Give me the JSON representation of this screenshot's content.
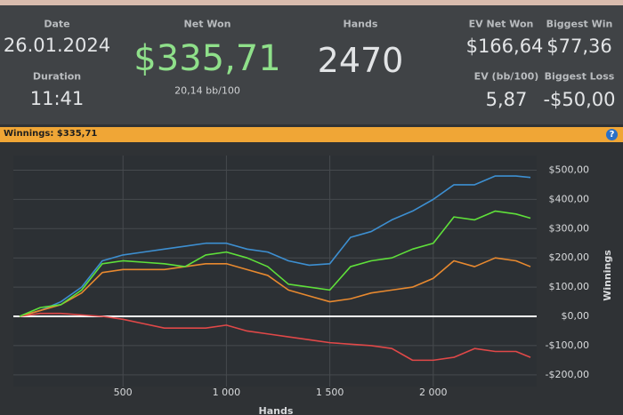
{
  "header": {
    "date": {
      "label": "Date",
      "value": "26.01.2024"
    },
    "duration": {
      "label": "Duration",
      "value": "11:41"
    },
    "net_won": {
      "label": "Net Won",
      "value": "$335,71",
      "sub": "20,14 bb/100"
    },
    "hands": {
      "label": "Hands",
      "value": "2470"
    },
    "ev_net_won": {
      "label": "EV Net Won",
      "value": "$166,64"
    },
    "ev_bb100": {
      "label": "EV (bb/100)",
      "value": "5,87"
    },
    "biggest_win": {
      "label": "Biggest Win",
      "value": "$77,36"
    },
    "biggest_loss": {
      "label": "Biggest Loss",
      "value": "-$50,00"
    }
  },
  "banner": {
    "title": "Winnings: $335,71",
    "help": "?"
  },
  "chart_data": {
    "type": "line",
    "x_label": "Hands",
    "y_label": "Winnings",
    "x": [
      0,
      100,
      200,
      300,
      400,
      500,
      600,
      700,
      800,
      900,
      1000,
      1100,
      1200,
      1300,
      1400,
      1500,
      1600,
      1700,
      1800,
      1900,
      2000,
      2100,
      2200,
      2300,
      2400,
      2470
    ],
    "series": [
      {
        "color": "#3d8fd1",
        "values": [
          0,
          20,
          50,
          100,
          190,
          210,
          220,
          230,
          240,
          250,
          250,
          230,
          220,
          190,
          175,
          180,
          270,
          290,
          330,
          360,
          400,
          450,
          450,
          480,
          480,
          475
        ]
      },
      {
        "color": "#e8892f",
        "values": [
          0,
          20,
          40,
          80,
          150,
          160,
          160,
          160,
          170,
          180,
          180,
          160,
          140,
          90,
          70,
          50,
          60,
          80,
          90,
          100,
          130,
          190,
          170,
          200,
          190,
          170
        ]
      },
      {
        "color": "#e04848",
        "values": [
          0,
          10,
          10,
          5,
          0,
          -10,
          -25,
          -40,
          -40,
          -40,
          -30,
          -50,
          -60,
          -70,
          -80,
          -90,
          -95,
          -100,
          -110,
          -150,
          -150,
          -140,
          -110,
          -120,
          -120,
          -140
        ]
      },
      {
        "color": "#5fe03a",
        "values": [
          0,
          30,
          40,
          90,
          180,
          190,
          185,
          180,
          170,
          210,
          220,
          200,
          170,
          110,
          100,
          90,
          170,
          190,
          200,
          230,
          250,
          340,
          330,
          360,
          350,
          335.71
        ]
      }
    ],
    "xlim": [
      -30,
      2500
    ],
    "ylim": [
      -240,
      550
    ],
    "xticks": [
      {
        "value": 500,
        "label": "500"
      },
      {
        "value": 1000,
        "label": "1 000"
      },
      {
        "value": 1500,
        "label": "1 500"
      },
      {
        "value": 2000,
        "label": "2 000"
      }
    ],
    "yticks": [
      {
        "value": -200,
        "label": "-$200,00"
      },
      {
        "value": -100,
        "label": "-$100,00"
      },
      {
        "value": 0,
        "label": "$0,00"
      },
      {
        "value": 100,
        "label": "$100,00"
      },
      {
        "value": 200,
        "label": "$200,00"
      },
      {
        "value": 300,
        "label": "$300,00"
      },
      {
        "value": 400,
        "label": "$400,00"
      },
      {
        "value": 500,
        "label": "$500,00"
      }
    ],
    "grid": true
  }
}
